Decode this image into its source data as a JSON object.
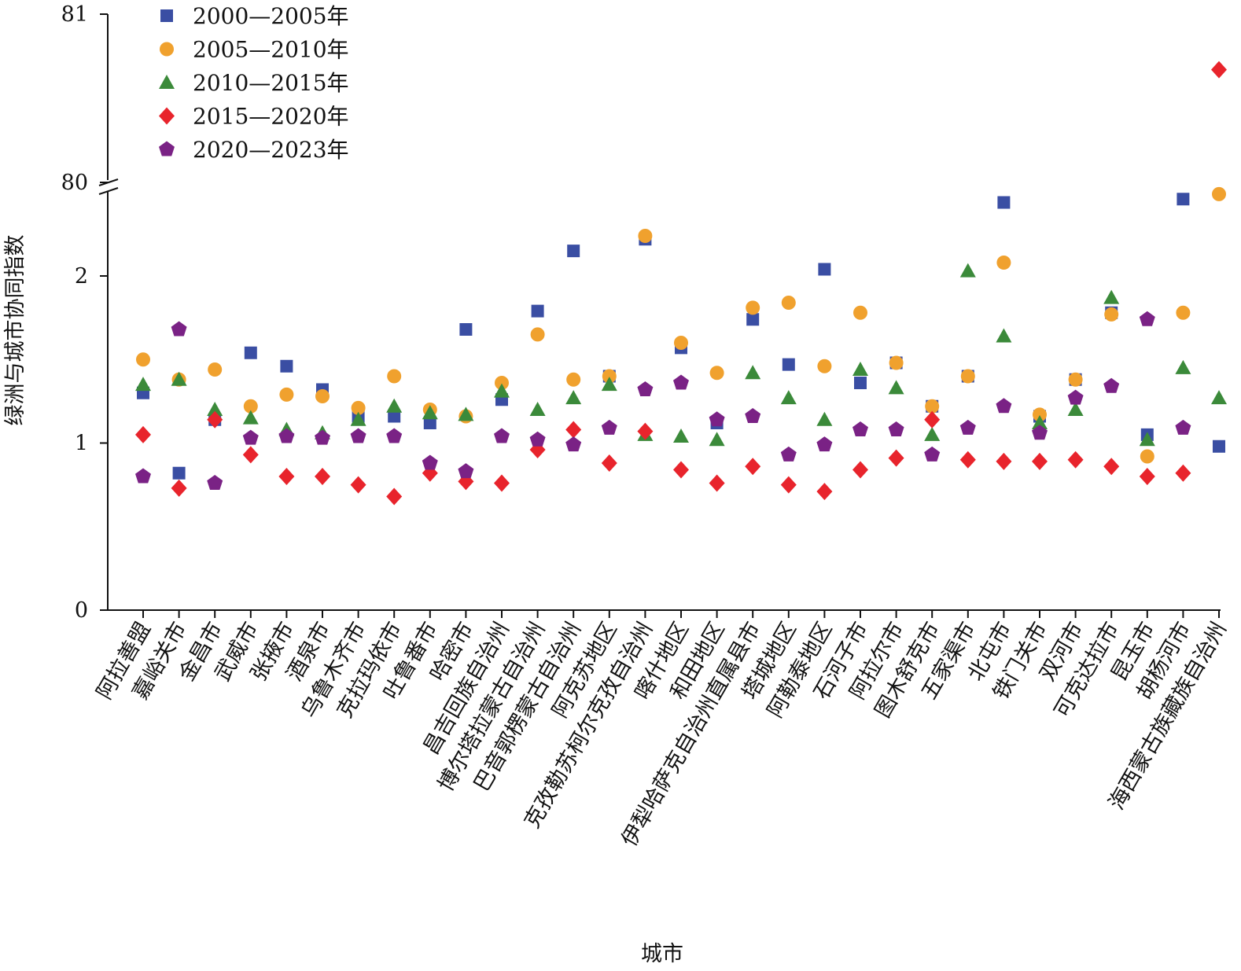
{
  "chart_data": {
    "type": "scatter",
    "title": "",
    "xlabel": "城市",
    "ylabel": "绿洲与城市协同指数",
    "y_axis_break": {
      "lower_range": [
        0,
        2.5
      ],
      "upper_range": [
        80,
        81
      ]
    },
    "y_ticks": [
      "0",
      "1",
      "2",
      "80",
      "81"
    ],
    "grid": false,
    "legend_position": "top-left",
    "categories": [
      "阿拉善盟",
      "嘉峪关市",
      "金昌市",
      "武威市",
      "张掖市",
      "酒泉市",
      "乌鲁木齐市",
      "克拉玛依市",
      "吐鲁番市",
      "哈密市",
      "昌吉回族自治州",
      "博尔塔拉蒙古自治州",
      "巴音郭楞蒙古自治州",
      "阿克苏地区",
      "克孜勒苏柯尔克孜自治州",
      "喀什地区",
      "和田地区",
      "伊犁哈萨克自治州直属县市",
      "塔城地区",
      "阿勒泰地区",
      "石河子市",
      "阿拉尔市",
      "图木舒克市",
      "五家渠市",
      "北屯市",
      "铁门关市",
      "双河市",
      "可克达拉市",
      "昆玉市",
      "胡杨河市",
      "海西蒙古族藏族自治州"
    ],
    "series": [
      {
        "name": "2000—2005年",
        "marker": "square",
        "color": "#3a4ea3",
        "values": [
          1.3,
          0.82,
          1.14,
          1.54,
          1.46,
          1.32,
          1.16,
          1.16,
          1.12,
          1.68,
          1.26,
          1.79,
          2.15,
          1.4,
          2.22,
          1.57,
          1.12,
          1.74,
          1.47,
          2.04,
          1.36,
          1.48,
          1.22,
          1.4,
          2.44,
          1.16,
          1.38,
          1.78,
          1.05,
          2.46,
          0.98
        ]
      },
      {
        "name": "2005—2010年",
        "marker": "circle",
        "color": "#f0a12e",
        "values": [
          1.5,
          1.38,
          1.44,
          1.22,
          1.29,
          1.28,
          1.21,
          1.4,
          1.2,
          1.16,
          1.36,
          1.65,
          1.38,
          1.4,
          2.24,
          1.6,
          1.42,
          1.81,
          1.84,
          1.46,
          1.78,
          1.48,
          1.22,
          1.4,
          2.08,
          1.17,
          1.38,
          1.77,
          0.92,
          1.78,
          2.49
        ]
      },
      {
        "name": "2010—2015年",
        "marker": "triangle",
        "color": "#3b8a3a",
        "values": [
          1.35,
          1.38,
          1.2,
          1.15,
          1.08,
          1.06,
          1.14,
          1.22,
          1.18,
          1.17,
          1.31,
          1.2,
          1.27,
          1.35,
          1.05,
          1.04,
          1.02,
          1.42,
          1.27,
          1.14,
          1.44,
          1.33,
          1.05,
          2.03,
          1.64,
          1.12,
          1.2,
          1.87,
          1.02,
          1.45,
          1.27
        ]
      },
      {
        "name": "2015—2020年",
        "marker": "diamond",
        "color": "#e8242c",
        "values": [
          1.05,
          0.73,
          1.14,
          0.93,
          0.8,
          0.8,
          0.75,
          0.68,
          0.82,
          0.77,
          0.76,
          0.96,
          1.08,
          0.88,
          1.07,
          0.84,
          0.76,
          0.86,
          0.75,
          0.71,
          0.84,
          0.91,
          1.14,
          0.9,
          0.89,
          0.89,
          0.9,
          0.86,
          0.8,
          0.82,
          80.67
        ]
      },
      {
        "name": "2020—2023年",
        "marker": "pentagon",
        "color": "#7a2285",
        "values": [
          0.8,
          1.68,
          0.76,
          1.03,
          1.04,
          1.03,
          1.04,
          1.04,
          0.88,
          0.83,
          1.04,
          1.02,
          0.99,
          1.09,
          1.32,
          1.36,
          1.14,
          1.16,
          0.93,
          0.99,
          1.08,
          1.08,
          0.93,
          1.09,
          1.22,
          1.06,
          1.27,
          1.34,
          1.74,
          1.09,
          null
        ]
      }
    ]
  }
}
